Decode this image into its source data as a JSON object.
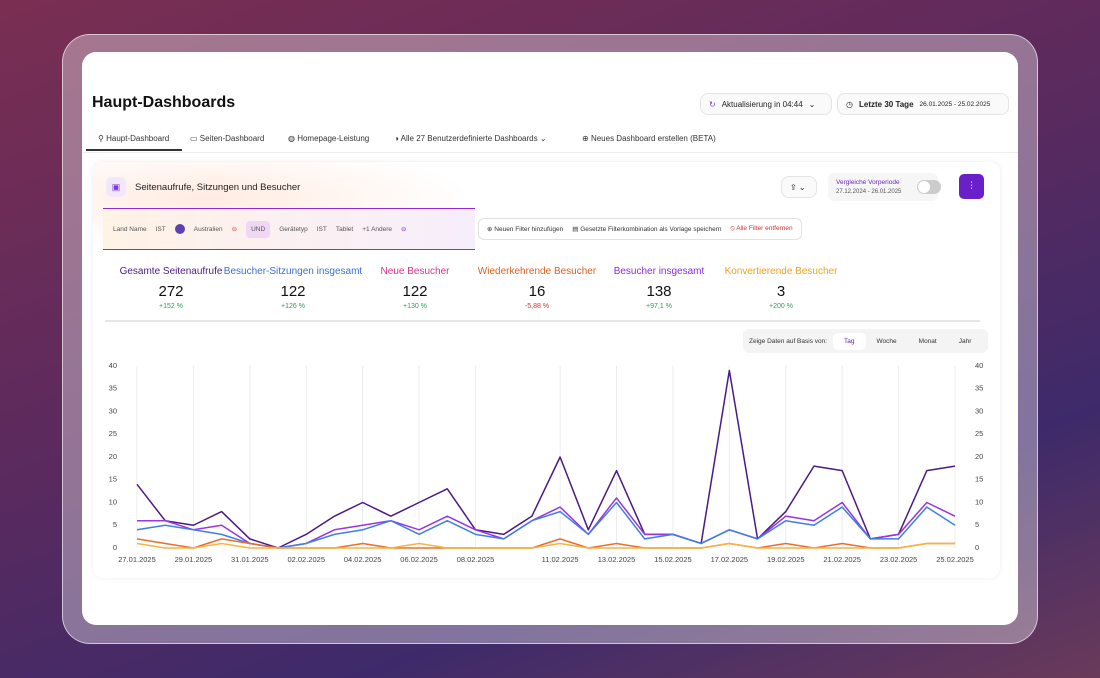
{
  "header": {
    "title": "Haupt-Dashboards",
    "refresh": "Aktualisierung in 04:44",
    "period_label": "Letzte 30 Tage",
    "period_range": "26.01.2025 - 25.02.2025"
  },
  "tabs": [
    "Haupt-Dashboard",
    "Seiten-Dashboard",
    "Homepage-Leistung",
    "Alle 27 Benutzerdefinierte Dashboards",
    "Neues Dashboard erstellen (BETA)"
  ],
  "card": {
    "title": "Seitenaufrufe, Sitzungen und Besucher",
    "compare_label": "Vergleiche Vorperiode",
    "compare_range": "27.12.2024 - 26.01.2025"
  },
  "filters": {
    "field1": "Land Name",
    "op1": "IST",
    "value1": "Australien",
    "joiner": "UND",
    "field2": "Gerätetyp",
    "op2": "IST",
    "value2": "Tablet",
    "more2": "+1 Andere",
    "actions": [
      "Neuen Filter hinzufügen",
      "Gesetzte Filterkombination als Vorlage speichern",
      "Alle Filter entfernen"
    ]
  },
  "kpis": [
    {
      "name": "Gesamte Seitenaufrufe",
      "value": "272",
      "change": "+152 %",
      "color": "#4b1a86",
      "change_color": "#2e9d4f"
    },
    {
      "name": "Besucher-Sitzungen insgesamt",
      "value": "122",
      "change": "+126 %",
      "color": "#3b6fd6",
      "change_color": "#2e9d4f"
    },
    {
      "name": "Neue Besucher",
      "value": "122",
      "change": "+130 %",
      "color": "#d6338f",
      "change_color": "#2e9d4f"
    },
    {
      "name": "Wiederkehrende Besucher",
      "value": "16",
      "change": "-5,88 %",
      "color": "#e0601f",
      "change_color": "#d63030"
    },
    {
      "name": "Besucher insgesamt",
      "value": "138",
      "change": "+97,1 %",
      "color": "#8a2be2",
      "change_color": "#2e9d4f"
    },
    {
      "name": "Konvertierende Besucher",
      "value": "3",
      "change": "+200 %",
      "color": "#f0a020",
      "change_color": "#2e9d4f"
    }
  ],
  "granularity": {
    "label": "Zeige Daten auf Basis von:",
    "options": [
      "Tag",
      "Woche",
      "Monat",
      "Jahr"
    ]
  },
  "chart_data": {
    "type": "line",
    "categories": [
      "27.01.2025",
      null,
      "29.01.2025",
      null,
      "31.01.2025",
      null,
      "02.02.2025",
      null,
      "04.02.2025",
      null,
      "06.02.2025",
      null,
      "08.02.2025",
      null,
      null,
      "11.02.2025",
      null,
      "13.02.2025",
      null,
      "15.02.2025",
      null,
      "17.02.2025",
      null,
      "19.02.2025",
      null,
      "21.02.2025",
      null,
      "23.02.2025",
      null,
      "25.02.2025"
    ],
    "series": [
      {
        "color": "#4b1a86",
        "values": [
          14,
          6,
          5,
          8,
          2,
          0,
          3,
          7,
          10,
          7,
          10,
          13,
          4,
          3,
          7,
          20,
          4,
          17,
          3,
          3,
          1,
          39,
          2,
          8,
          18,
          17,
          2,
          3,
          17,
          18
        ]
      },
      {
        "color": "#9b35e0",
        "values": [
          6,
          6,
          4,
          5,
          1,
          0,
          1,
          4,
          5,
          6,
          4,
          7,
          4,
          2,
          6,
          9,
          3,
          11,
          3,
          3,
          1,
          4,
          2,
          7,
          6,
          10,
          2,
          3,
          10,
          7
        ]
      },
      {
        "color": "#3d7fe6",
        "values": [
          4,
          5,
          4,
          3,
          1,
          0,
          1,
          3,
          4,
          6,
          3,
          6,
          3,
          2,
          6,
          8,
          3,
          10,
          2,
          3,
          1,
          4,
          2,
          6,
          5,
          9,
          2,
          2,
          9,
          5
        ]
      },
      {
        "color": "#e8702a",
        "values": [
          2,
          1,
          0,
          2,
          1,
          0,
          0,
          0,
          1,
          0,
          0,
          0,
          0,
          0,
          0,
          2,
          0,
          1,
          0,
          0,
          0,
          1,
          0,
          1,
          0,
          1,
          0,
          0,
          1,
          1
        ]
      },
      {
        "color": "#f5b342",
        "values": [
          1,
          0,
          0,
          1,
          0,
          0,
          0,
          0,
          0,
          0,
          1,
          0,
          0,
          0,
          0,
          1,
          0,
          0,
          0,
          0,
          0,
          1,
          0,
          0,
          0,
          0,
          0,
          0,
          1,
          1
        ]
      }
    ],
    "ylim": [
      0,
      40
    ],
    "yticks": [
      0,
      5,
      10,
      15,
      20,
      25,
      30,
      35,
      40
    ],
    "y2lim": [
      0,
      40
    ],
    "y2ticks": [
      0,
      5,
      10,
      15,
      20,
      25,
      30,
      35,
      40
    ],
    "grid": "x"
  }
}
